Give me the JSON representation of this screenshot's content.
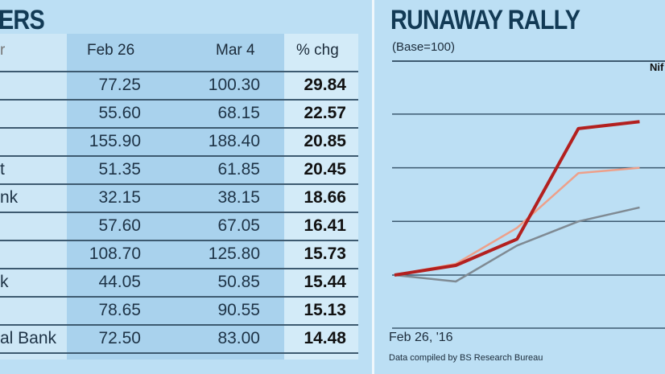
{
  "left_table": {
    "title": "ERS",
    "headers": [
      "r",
      "Feb 26",
      "Mar 4",
      "% chg"
    ],
    "rows": [
      {
        "name": "",
        "feb26": "77.25",
        "mar4": "100.30",
        "chg": "29.84"
      },
      {
        "name": "",
        "feb26": "55.60",
        "mar4": "68.15",
        "chg": "22.57"
      },
      {
        "name": "",
        "feb26": "155.90",
        "mar4": "188.40",
        "chg": "20.85"
      },
      {
        "name": "t",
        "feb26": "51.35",
        "mar4": "61.85",
        "chg": "20.45"
      },
      {
        "name": "nk",
        "feb26": "32.15",
        "mar4": "38.15",
        "chg": "18.66"
      },
      {
        "name": "",
        "feb26": "57.60",
        "mar4": "67.05",
        "chg": "16.41"
      },
      {
        "name": "",
        "feb26": "108.70",
        "mar4": "125.80",
        "chg": "15.73"
      },
      {
        "name": "k",
        "feb26": "44.05",
        "mar4": "50.85",
        "chg": "15.44"
      },
      {
        "name": "",
        "feb26": "78.65",
        "mar4": "90.55",
        "chg": "15.13"
      },
      {
        "name": "al Bank",
        "feb26": "72.50",
        "mar4": "83.00",
        "chg": "14.48"
      }
    ]
  },
  "chart_data": {
    "type": "line",
    "title": "RUNAWAY RALLY",
    "subtitle": "(Base=100)",
    "x_start_label": "Feb 26, '16",
    "source": "Data compiled by BS Research Bureau",
    "legend_partial": "Nif",
    "x": [
      0,
      1,
      2,
      3,
      4
    ],
    "ylim": [
      90,
      135
    ],
    "grid": true,
    "gridlines": [
      100,
      110,
      120,
      130
    ],
    "series": [
      {
        "color": "#b3201f",
        "values": [
          100,
          101.8,
          106.7,
          127.3,
          128.6
        ]
      },
      {
        "color": "#eda08a",
        "values": [
          100,
          102.1,
          108.8,
          119,
          120
        ]
      },
      {
        "color": "#7f8a93",
        "values": [
          100,
          98.8,
          105.5,
          110,
          112.6
        ]
      }
    ]
  }
}
